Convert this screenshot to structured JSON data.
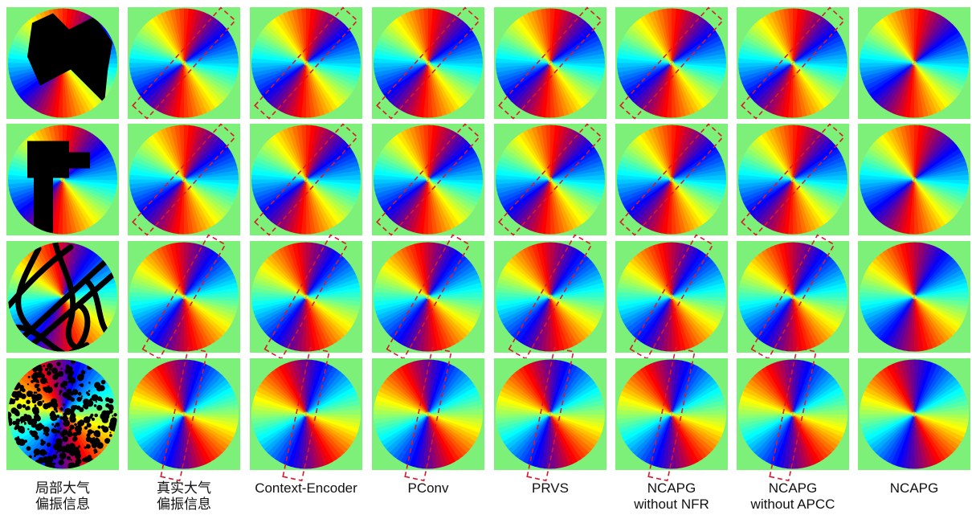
{
  "figure": {
    "columns": [
      {
        "id": "partial",
        "label_lines": [
          "局部大气",
          "偏振信息"
        ]
      },
      {
        "id": "gt",
        "label_lines": [
          "真实大气",
          "偏振信息"
        ]
      },
      {
        "id": "context-encoder",
        "label_lines": [
          "Context-Encoder"
        ]
      },
      {
        "id": "pconv",
        "label_lines": [
          "PConv"
        ]
      },
      {
        "id": "prvs",
        "label_lines": [
          "PRVS"
        ]
      },
      {
        "id": "ncapg-without-nfr",
        "label_lines": [
          "NCAPG",
          "without NFR"
        ]
      },
      {
        "id": "ncapg-without-apcc",
        "label_lines": [
          "NCAPG",
          "without APCC"
        ]
      },
      {
        "id": "ncapg",
        "label_lines": [
          "NCAPG"
        ]
      }
    ],
    "rows": [
      {
        "id": "row-1",
        "mask": "irregular-polygon",
        "pattern_angle_deg": -40
      },
      {
        "id": "row-2",
        "mask": "block-shapes",
        "pattern_angle_deg": -40
      },
      {
        "id": "row-3",
        "mask": "scribble-strokes",
        "pattern_angle_deg": -58
      },
      {
        "id": "row-4",
        "mask": "dense-noise",
        "pattern_angle_deg": -75
      }
    ],
    "colors": {
      "background": "#7df07a",
      "mask": "#000000",
      "highlight_box": "#d9182d",
      "colormap": [
        "#0000ff",
        "#00ffff",
        "#ffff00",
        "#ff0000",
        "#0000ff"
      ]
    }
  }
}
